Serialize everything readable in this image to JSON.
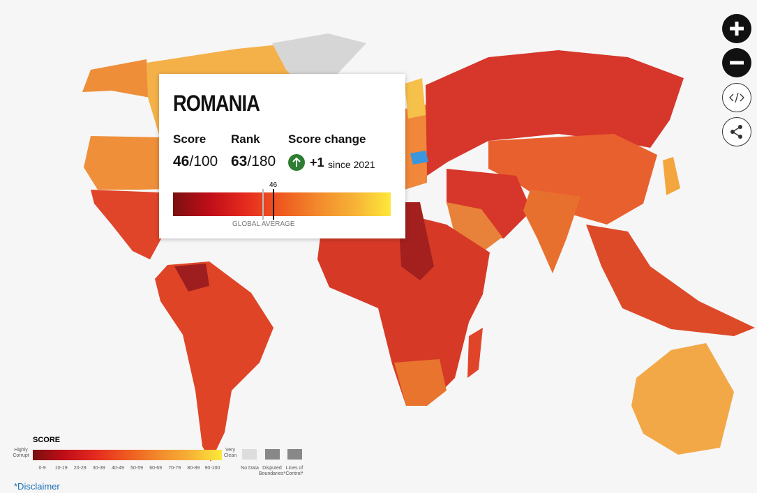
{
  "tooltip": {
    "country": "ROMANIA",
    "score_label": "Score",
    "score": 46,
    "score_max": "/100",
    "rank_label": "Rank",
    "rank": 63,
    "rank_max": "/180",
    "change_label": "Score change",
    "change": "+1",
    "change_since": "since 2021",
    "marker": 46,
    "average_label": "GLOBAL AVERAGE"
  },
  "legend": {
    "title": "SCORE",
    "low": "Highly Corrupt",
    "high": "Very Clean",
    "bins": [
      "0-9",
      "10-19",
      "20-29",
      "30-39",
      "40-49",
      "50-59",
      "60-69",
      "70-79",
      "80-89",
      "90-100"
    ],
    "no_data": "No Data",
    "disputed": "Disputed Boundaries*",
    "lines": "Lines of Control*"
  },
  "footer": {
    "disclaimer": "*Disclaimer"
  }
}
